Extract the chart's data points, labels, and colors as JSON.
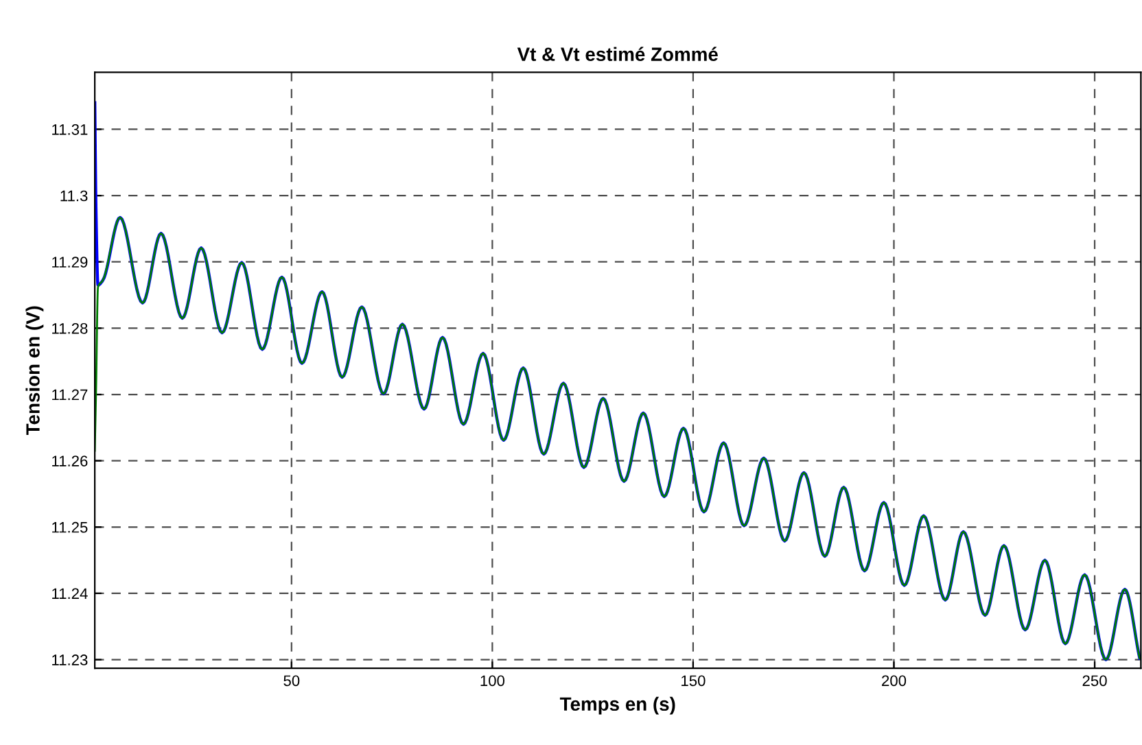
{
  "chart_data": {
    "type": "line",
    "title": "Vt & Vt estimé Zommé",
    "xlabel": "Temps en (s)",
    "ylabel": "Tension en (V)",
    "xlim": [
      1,
      261.5
    ],
    "ylim": [
      11.2287,
      11.3186
    ],
    "xticks": [
      50,
      100,
      150,
      200,
      250
    ],
    "yticks": [
      11.23,
      11.24,
      11.25,
      11.26,
      11.27,
      11.28,
      11.29,
      11.3,
      11.31
    ],
    "grid": true,
    "legend": false,
    "marker": "none",
    "line_style": "solid",
    "series": [
      {
        "color": "#0000ff",
        "x": [
          1,
          1.3,
          1.8,
          3,
          7.3,
          12.9,
          17.5,
          22.8,
          27.5,
          32.7,
          37.6,
          42.7,
          47.6,
          52.6,
          57.6,
          62.6,
          67.5,
          72.9,
          77.6,
          83,
          87.6,
          92.8,
          97.7,
          102.8,
          107.7,
          112.8,
          117.7,
          122.8,
          127.6,
          132.8,
          137.6,
          142.8,
          147.6,
          152.7,
          157.6,
          162.7,
          167.6,
          172.8,
          177.6,
          182.8,
          187.5,
          192.7,
          197.5,
          202.6,
          207.4,
          212.8,
          217.3,
          222.7,
          227.4,
          232.7,
          237.6,
          242.7,
          247.5,
          252.8,
          257.5,
          261.2
        ],
        "values": [
          11.314,
          11.298,
          11.2865,
          11.2872,
          11.2967,
          11.2838,
          11.2943,
          11.2815,
          11.2921,
          11.2793,
          11.2899,
          11.2768,
          11.2877,
          11.2747,
          11.2855,
          11.2726,
          11.2832,
          11.2701,
          11.2806,
          11.2678,
          11.2786,
          11.2655,
          11.2762,
          11.2631,
          11.274,
          11.261,
          11.2717,
          11.259,
          11.2694,
          11.2569,
          11.2672,
          11.2546,
          11.2649,
          11.2523,
          11.2627,
          11.2502,
          11.2604,
          11.2479,
          11.2582,
          11.2456,
          11.256,
          11.2434,
          11.2537,
          11.2412,
          11.2517,
          11.239,
          11.2493,
          11.2367,
          11.2472,
          11.2345,
          11.245,
          11.2324,
          11.2428,
          11.23,
          11.2406,
          11.2302
        ]
      },
      {
        "color": "#008000",
        "x": [
          1,
          1.3,
          1.8,
          3,
          7.3,
          12.9,
          17.5,
          22.8,
          27.5,
          32.7,
          37.6,
          42.7,
          47.6,
          52.6,
          57.6,
          62.6,
          67.5,
          72.9,
          77.6,
          83,
          87.6,
          92.8,
          97.7,
          102.8,
          107.7,
          112.8,
          117.7,
          122.8,
          127.6,
          132.8,
          137.6,
          142.8,
          147.6,
          152.7,
          157.6,
          162.7,
          167.6,
          172.8,
          177.6,
          182.8,
          187.5,
          192.7,
          197.5,
          202.6,
          207.4,
          212.8,
          217.3,
          222.7,
          227.4,
          232.7,
          237.6,
          242.7,
          247.5,
          252.8,
          257.5,
          261.2
        ],
        "values": [
          11.2615,
          11.27,
          11.2862,
          11.2872,
          11.2967,
          11.2838,
          11.2943,
          11.2815,
          11.2921,
          11.2793,
          11.2899,
          11.2768,
          11.2877,
          11.2747,
          11.2855,
          11.2726,
          11.2832,
          11.2701,
          11.2806,
          11.2678,
          11.2786,
          11.2655,
          11.2762,
          11.2631,
          11.274,
          11.261,
          11.2717,
          11.259,
          11.2694,
          11.2569,
          11.2672,
          11.2546,
          11.2649,
          11.2523,
          11.2627,
          11.2502,
          11.2604,
          11.2479,
          11.2582,
          11.2456,
          11.256,
          11.2434,
          11.2537,
          11.2412,
          11.2517,
          11.239,
          11.2493,
          11.2367,
          11.2472,
          11.2345,
          11.245,
          11.2324,
          11.2428,
          11.23,
          11.2406,
          11.2302
        ]
      }
    ]
  }
}
